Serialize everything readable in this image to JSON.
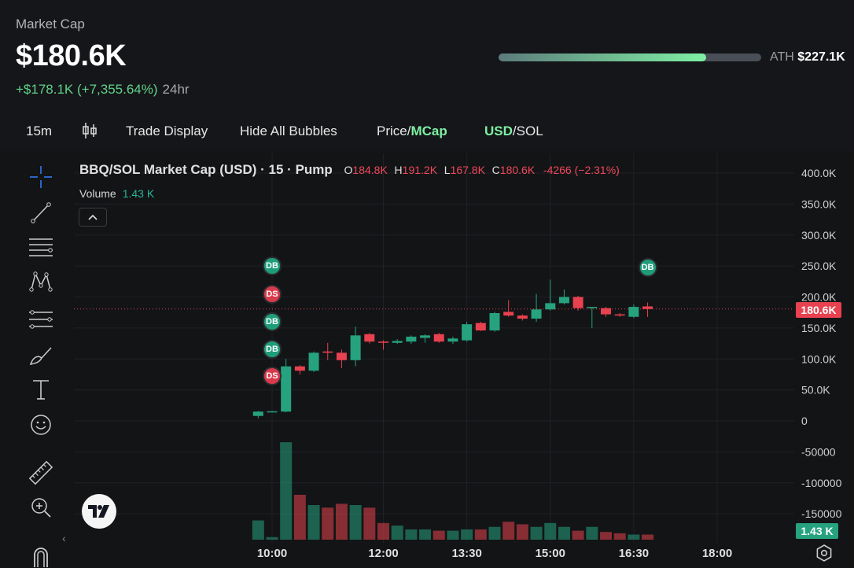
{
  "header": {
    "label": "Market Cap",
    "value": "$180.6K",
    "change": "+$178.1K (+7,355.64%)",
    "period": "24hr",
    "ath_label": "ATH",
    "ath_value": "$227.1K",
    "ath_progress_fraction": 0.79
  },
  "toolbar": {
    "interval": "15m",
    "trade_display": "Trade Display",
    "hide_bubbles": "Hide All Bubbles",
    "price_label": "Price/",
    "mcap_label": "MCap",
    "usd_label": "USD",
    "sol_label": "/SOL"
  },
  "legend": {
    "title": "BBQ/SOL Market Cap (USD) · 15 · Pump",
    "o_label": "O",
    "o_value": "184.8K",
    "h_label": "H",
    "h_value": "191.2K",
    "l_label": "L",
    "l_value": "167.8K",
    "c_label": "C",
    "c_value": "180.6K",
    "change": "-4266 (−2.31%)",
    "volume_label": "Volume",
    "volume_value": "1.43 K"
  },
  "tags": {
    "price": "180.6K",
    "volume": "1.43 K"
  },
  "colors": {
    "up": "#26a27f",
    "down": "#e8414f",
    "accent": "#7ef0a3",
    "background": "#131416"
  },
  "icons": [
    "crosshair-icon",
    "trend-line-icon",
    "fib-lines-icon",
    "pattern-icon",
    "prediction-icon",
    "brush-icon",
    "text-icon",
    "emoji-icon",
    "ruler-icon",
    "zoom-in-icon",
    "magnet-icon",
    "settings-icon",
    "tradingview-logo"
  ],
  "chart_data": {
    "type": "candlestick",
    "y_axis_labels": [
      "400.0K",
      "350.0K",
      "300.0K",
      "250.0K",
      "200.0K",
      "150.0K",
      "100.0K",
      "50.0K",
      "0",
      "-50000",
      "-100000",
      "-150000"
    ],
    "y_axis_values": [
      400000,
      350000,
      300000,
      250000,
      200000,
      150000,
      100000,
      50000,
      0,
      -50000,
      -100000,
      -150000
    ],
    "x_axis_labels": [
      "10:00",
      "12:00",
      "13:30",
      "15:00",
      "16:30",
      "18:00"
    ],
    "x_axis_times": [
      "10:00",
      "12:00",
      "13:30",
      "15:00",
      "16:30",
      "18:00"
    ],
    "candles": [
      {
        "t": "09:45",
        "o": 8000,
        "h": 16000,
        "l": 4000,
        "c": 15000
      },
      {
        "t": "10:00",
        "o": 15000,
        "h": 16000,
        "l": 14000,
        "c": 15500
      },
      {
        "t": "10:15",
        "o": 15000,
        "h": 100000,
        "l": 14000,
        "c": 88000
      },
      {
        "t": "10:30",
        "o": 88000,
        "h": 90000,
        "l": 75000,
        "c": 81000
      },
      {
        "t": "10:45",
        "o": 81000,
        "h": 112000,
        "l": 79000,
        "c": 110000
      },
      {
        "t": "11:00",
        "o": 112000,
        "h": 126000,
        "l": 98000,
        "c": 110000
      },
      {
        "t": "11:15",
        "o": 110000,
        "h": 115000,
        "l": 85000,
        "c": 98000
      },
      {
        "t": "11:30",
        "o": 98000,
        "h": 152000,
        "l": 88000,
        "c": 138000
      },
      {
        "t": "11:45",
        "o": 140000,
        "h": 142000,
        "l": 125000,
        "c": 128000
      },
      {
        "t": "12:00",
        "o": 128000,
        "h": 130000,
        "l": 115000,
        "c": 126000
      },
      {
        "t": "12:15",
        "o": 126000,
        "h": 132000,
        "l": 124000,
        "c": 129000
      },
      {
        "t": "12:30",
        "o": 128000,
        "h": 138000,
        "l": 124000,
        "c": 136000
      },
      {
        "t": "12:45",
        "o": 134000,
        "h": 140000,
        "l": 126000,
        "c": 138000
      },
      {
        "t": "13:00",
        "o": 140000,
        "h": 142000,
        "l": 126000,
        "c": 128000
      },
      {
        "t": "13:15",
        "o": 128000,
        "h": 136000,
        "l": 124000,
        "c": 133000
      },
      {
        "t": "13:30",
        "o": 130000,
        "h": 160000,
        "l": 128000,
        "c": 156000
      },
      {
        "t": "13:45",
        "o": 158000,
        "h": 160000,
        "l": 145000,
        "c": 146000
      },
      {
        "t": "14:00",
        "o": 146000,
        "h": 176000,
        "l": 144000,
        "c": 174000
      },
      {
        "t": "14:15",
        "o": 176000,
        "h": 195000,
        "l": 168000,
        "c": 170000
      },
      {
        "t": "14:30",
        "o": 170000,
        "h": 172000,
        "l": 162000,
        "c": 165000
      },
      {
        "t": "14:45",
        "o": 165000,
        "h": 205000,
        "l": 160000,
        "c": 180000
      },
      {
        "t": "15:00",
        "o": 180000,
        "h": 228000,
        "l": 178000,
        "c": 190000
      },
      {
        "t": "15:15",
        "o": 190000,
        "h": 212000,
        "l": 188000,
        "c": 200000
      },
      {
        "t": "15:30",
        "o": 200000,
        "h": 202000,
        "l": 178000,
        "c": 182000
      },
      {
        "t": "15:45",
        "o": 182000,
        "h": 184000,
        "l": 150000,
        "c": 184000
      },
      {
        "t": "16:00",
        "o": 182000,
        "h": 184000,
        "l": 168000,
        "c": 172000
      },
      {
        "t": "16:15",
        "o": 172000,
        "h": 174000,
        "l": 168000,
        "c": 170000
      },
      {
        "t": "16:30",
        "o": 168000,
        "h": 188000,
        "l": 166000,
        "c": 184000
      },
      {
        "t": "16:45",
        "o": 184800,
        "h": 191200,
        "l": 167800,
        "c": 180600
      }
    ],
    "volume_relative": [
      0.15,
      0.02,
      0.76,
      0.35,
      0.27,
      0.25,
      0.28,
      0.27,
      0.25,
      0.13,
      0.11,
      0.08,
      0.08,
      0.07,
      0.07,
      0.08,
      0.08,
      0.1,
      0.14,
      0.12,
      0.1,
      0.13,
      0.1,
      0.07,
      0.1,
      0.06,
      0.05,
      0.04,
      0.04
    ],
    "bubbles": [
      {
        "label": "DB",
        "kind": "buy",
        "t": "10:00",
        "y": 250000
      },
      {
        "label": "DS",
        "kind": "sell",
        "t": "10:00",
        "y": 205000
      },
      {
        "label": "DB",
        "kind": "buy",
        "t": "10:00",
        "y": 160000
      },
      {
        "label": "DB",
        "kind": "buy",
        "t": "10:00",
        "y": 115000
      },
      {
        "label": "DS",
        "kind": "sell",
        "t": "10:00",
        "y": 72000
      },
      {
        "label": "DB",
        "kind": "buy",
        "t": "16:45",
        "y": 247000
      }
    ],
    "last_price": 180600
  }
}
